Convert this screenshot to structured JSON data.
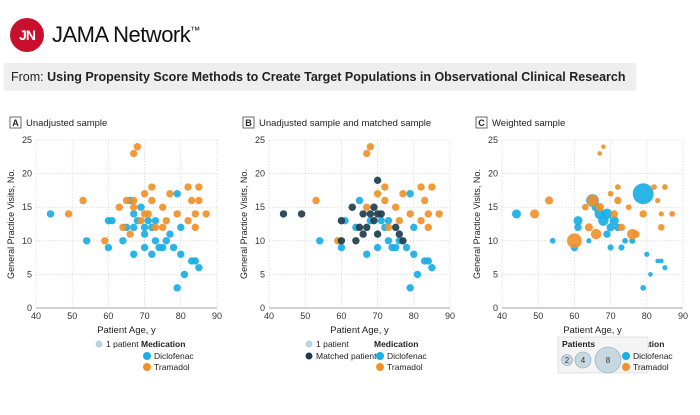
{
  "header": {
    "logo_mark": "JN",
    "brand": "JAMA Network",
    "trademark": "™",
    "from_label": "From:",
    "article_title": "Using Propensity Score Methods to Create Target Populations in Observational Clinical Research"
  },
  "colors": {
    "diclofenac": "#1aaee5",
    "tramadol": "#f0912a",
    "matched": "#1f3d4d",
    "one_patient": "#b8d3e0",
    "grid": "#cfcfcf",
    "axis_text": "#333333"
  },
  "chart_data": [
    {
      "type": "scatter",
      "panel_letter": "A",
      "title": "Unadjusted sample",
      "xlabel": "Patient Age, y",
      "ylabel": "General Practice Visits, No.",
      "xlim": [
        40,
        90
      ],
      "ylim": [
        0,
        25
      ],
      "xticks": [
        40,
        50,
        60,
        70,
        80,
        90
      ],
      "yticks": [
        0,
        5,
        10,
        15,
        20,
        25
      ],
      "grid": true,
      "legend": {
        "title": "Medication",
        "size_key": "1 patient",
        "entries": [
          "Diclofenac",
          "Tramadol"
        ]
      },
      "series": [
        {
          "name": "Diclofenac",
          "points": [
            [
              44,
              14
            ],
            [
              54,
              10
            ],
            [
              60,
              9
            ],
            [
              60,
              13
            ],
            [
              61,
              13
            ],
            [
              64,
              10
            ],
            [
              65,
              12
            ],
            [
              66,
              16
            ],
            [
              67,
              14
            ],
            [
              67,
              12
            ],
            [
              67,
              8
            ],
            [
              68,
              13
            ],
            [
              69,
              15
            ],
            [
              70,
              12
            ],
            [
              70,
              9
            ],
            [
              70,
              11
            ],
            [
              71,
              13
            ],
            [
              72,
              12
            ],
            [
              72,
              8
            ],
            [
              73,
              13
            ],
            [
              73,
              10
            ],
            [
              74,
              9
            ],
            [
              75,
              9
            ],
            [
              76,
              10
            ],
            [
              77,
              11
            ],
            [
              78,
              9
            ],
            [
              79,
              3
            ],
            [
              79,
              17
            ],
            [
              80,
              8
            ],
            [
              80,
              12
            ],
            [
              81,
              5
            ],
            [
              83,
              7
            ],
            [
              84,
              7
            ],
            [
              85,
              6
            ]
          ]
        },
        {
          "name": "Tramadol",
          "points": [
            [
              49,
              14
            ],
            [
              53,
              16
            ],
            [
              59,
              10
            ],
            [
              63,
              15
            ],
            [
              64,
              12
            ],
            [
              65,
              16
            ],
            [
              66,
              11
            ],
            [
              67,
              16
            ],
            [
              67,
              15
            ],
            [
              67,
              23
            ],
            [
              68,
              24
            ],
            [
              69,
              13
            ],
            [
              70,
              17
            ],
            [
              70,
              14
            ],
            [
              71,
              14
            ],
            [
              72,
              18
            ],
            [
              72,
              16
            ],
            [
              73,
              12
            ],
            [
              75,
              12
            ],
            [
              75,
              15
            ],
            [
              76,
              13
            ],
            [
              77,
              17
            ],
            [
              79,
              14
            ],
            [
              82,
              13
            ],
            [
              82,
              18
            ],
            [
              83,
              16
            ],
            [
              84,
              14
            ],
            [
              84,
              12
            ],
            [
              85,
              18
            ],
            [
              85,
              16
            ],
            [
              87,
              14
            ]
          ]
        }
      ]
    },
    {
      "type": "scatter",
      "panel_letter": "B",
      "title": "Unadjusted sample and matched sample",
      "xlabel": "Patient Age, y",
      "ylabel": "General Practice Visits, No.",
      "xlim": [
        40,
        90
      ],
      "ylim": [
        0,
        25
      ],
      "xticks": [
        40,
        50,
        60,
        70,
        80,
        90
      ],
      "yticks": [
        0,
        5,
        10,
        15,
        20,
        25
      ],
      "grid": true,
      "legend": {
        "title": "Medication",
        "size_key": "1 patient",
        "matched_key": "Matched patient",
        "entries": [
          "Diclofenac",
          "Tramadol"
        ]
      },
      "series": [
        {
          "name": "Diclofenac",
          "points": [
            [
              54,
              10
            ],
            [
              60,
              9
            ],
            [
              61,
              13
            ],
            [
              64,
              12
            ],
            [
              65,
              16
            ],
            [
              67,
              8
            ],
            [
              68,
              13
            ],
            [
              70,
              9
            ],
            [
              71,
              13
            ],
            [
              72,
              12
            ],
            [
              73,
              13
            ],
            [
              73,
              10
            ],
            [
              74,
              9
            ],
            [
              75,
              9
            ],
            [
              76,
              10
            ],
            [
              78,
              9
            ],
            [
              79,
              17
            ],
            [
              80,
              8
            ],
            [
              80,
              12
            ],
            [
              81,
              5
            ],
            [
              83,
              7
            ],
            [
              84,
              7
            ],
            [
              85,
              6
            ],
            [
              79,
              3
            ]
          ]
        },
        {
          "name": "Tramadol",
          "points": [
            [
              53,
              16
            ],
            [
              59,
              10
            ],
            [
              67,
              15
            ],
            [
              67,
              23
            ],
            [
              68,
              24
            ],
            [
              70,
              17
            ],
            [
              72,
              18
            ],
            [
              72,
              16
            ],
            [
              73,
              12
            ],
            [
              75,
              15
            ],
            [
              76,
              13
            ],
            [
              77,
              17
            ],
            [
              79,
              14
            ],
            [
              82,
              13
            ],
            [
              82,
              18
            ],
            [
              83,
              16
            ],
            [
              84,
              14
            ],
            [
              84,
              12
            ],
            [
              85,
              18
            ],
            [
              87,
              14
            ]
          ]
        },
        {
          "name": "Matched patient",
          "points": [
            [
              44,
              14
            ],
            [
              49,
              14
            ],
            [
              60,
              13
            ],
            [
              60,
              10
            ],
            [
              63,
              15
            ],
            [
              64,
              10
            ],
            [
              65,
              12
            ],
            [
              66,
              11
            ],
            [
              66,
              14
            ],
            [
              67,
              12
            ],
            [
              68,
              14
            ],
            [
              69,
              15
            ],
            [
              69,
              13
            ],
            [
              70,
              11
            ],
            [
              70,
              14
            ],
            [
              71,
              14
            ],
            [
              70,
              19
            ],
            [
              75,
              12
            ],
            [
              76,
              11
            ],
            [
              77,
              10
            ]
          ]
        }
      ]
    },
    {
      "type": "scatter",
      "panel_letter": "C",
      "title": "Weighted sample",
      "xlabel": "Patient Age, y",
      "ylabel": "General Practice Visits, No.",
      "xlim": [
        40,
        90
      ],
      "ylim": [
        0,
        25
      ],
      "xticks": [
        40,
        50,
        60,
        70,
        80,
        90
      ],
      "yticks": [
        0,
        5,
        10,
        15,
        20,
        25
      ],
      "grid": true,
      "legend": {
        "title": "Medication",
        "size_title": "Patients",
        "size_keys": [
          2,
          4,
          8
        ],
        "entries": [
          "Diclofenac",
          "Tramadol"
        ]
      },
      "series": [
        {
          "name": "Diclofenac",
          "points": [
            [
              44,
              14,
              1.5
            ],
            [
              54,
              10,
              0.6
            ],
            [
              60,
              9,
              1
            ],
            [
              61,
              13,
              1.5
            ],
            [
              61,
              12,
              1
            ],
            [
              64,
              10,
              0.5
            ],
            [
              65,
              16,
              3
            ],
            [
              66,
              15,
              1.5
            ],
            [
              67,
              14,
              2
            ],
            [
              68,
              13,
              2
            ],
            [
              69,
              14,
              2
            ],
            [
              69,
              11,
              1
            ],
            [
              70,
              9,
              0.7
            ],
            [
              70,
              12,
              1.2
            ],
            [
              71,
              13,
              1.5
            ],
            [
              72,
              12,
              1
            ],
            [
              73,
              9,
              0.7
            ],
            [
              74,
              10,
              0.6
            ],
            [
              76,
              10,
              0.7
            ],
            [
              79,
              17,
              8
            ],
            [
              79,
              3,
              0.6
            ],
            [
              80,
              8,
              0.5
            ],
            [
              81,
              5,
              0.4
            ],
            [
              83,
              7,
              0.4
            ],
            [
              84,
              7,
              0.4
            ],
            [
              85,
              6,
              0.5
            ]
          ]
        },
        {
          "name": "Tramadol",
          "points": [
            [
              49,
              14,
              1.5
            ],
            [
              53,
              16,
              1.2
            ],
            [
              60,
              10,
              4
            ],
            [
              63,
              15,
              0.8
            ],
            [
              64,
              12,
              1.2
            ],
            [
              65,
              16,
              2.5
            ],
            [
              66,
              11,
              2
            ],
            [
              67,
              15,
              1.3
            ],
            [
              67,
              23,
              0.4
            ],
            [
              68,
              24,
              0.4
            ],
            [
              70,
              17,
              0.6
            ],
            [
              71,
              14,
              1
            ],
            [
              72,
              18,
              0.6
            ],
            [
              72,
              16,
              1
            ],
            [
              73,
              12,
              1
            ],
            [
              75,
              15,
              0.6
            ],
            [
              76,
              11,
              2
            ],
            [
              77,
              11,
              1
            ],
            [
              79,
              14,
              1
            ],
            [
              82,
              18,
              0.6
            ],
            [
              83,
              16,
              0.5
            ],
            [
              84,
              14,
              0.5
            ],
            [
              84,
              12,
              0.8
            ],
            [
              85,
              18,
              0.6
            ],
            [
              87,
              14,
              0.6
            ]
          ]
        }
      ]
    }
  ]
}
